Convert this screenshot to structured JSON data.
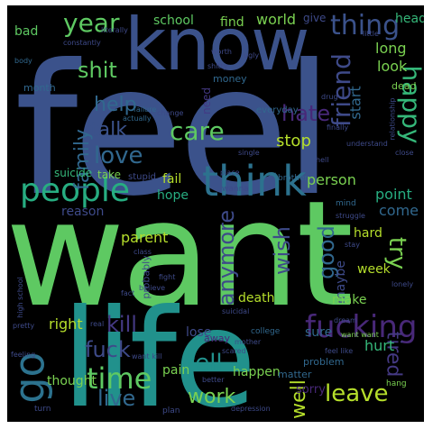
{
  "word_cloud": {
    "words": [
      {
        "text": "feel",
        "color": "#3b528b"
      },
      {
        "text": "want",
        "color": "#5ec962"
      },
      {
        "text": "life",
        "color": "#21918c"
      },
      {
        "text": "know",
        "color": "#3b528b"
      },
      {
        "text": "think",
        "color": "#2c728e"
      },
      {
        "text": "people",
        "color": "#27ad81"
      },
      {
        "text": "fucking",
        "color": "#482878"
      },
      {
        "text": "go",
        "color": "#2c728e"
      },
      {
        "text": "time",
        "color": "#5ec962"
      },
      {
        "text": "thing",
        "color": "#3b528b"
      },
      {
        "text": "year",
        "color": "#5ec962"
      },
      {
        "text": "friend",
        "color": "#3e4a89"
      },
      {
        "text": "happy",
        "color": "#35b779"
      },
      {
        "text": "shit",
        "color": "#5ec962"
      },
      {
        "text": "care",
        "color": "#5ec962"
      },
      {
        "text": "hate",
        "color": "#482878"
      },
      {
        "text": "love",
        "color": "#31688e"
      },
      {
        "text": "help",
        "color": "#31688e"
      },
      {
        "text": "talk",
        "color": "#3b528b"
      },
      {
        "text": "family",
        "color": "#31688e"
      },
      {
        "text": "good",
        "color": "#31688e"
      },
      {
        "text": "wish",
        "color": "#3e4a89"
      },
      {
        "text": "anymore",
        "color": "#3e4a89"
      },
      {
        "text": "try",
        "color": "#7ad151"
      },
      {
        "text": "tired",
        "color": "#443983"
      },
      {
        "text": "leave",
        "color": "#b5de2b"
      },
      {
        "text": "kill",
        "color": "#443983"
      },
      {
        "text": "fuck",
        "color": "#3e4a89"
      },
      {
        "text": "live",
        "color": "#31688e"
      },
      {
        "text": "tell",
        "color": "#21918c"
      },
      {
        "text": "work",
        "color": "#7ad151"
      },
      {
        "text": "well",
        "color": "#b5de2b"
      },
      {
        "text": "stop",
        "color": "#b5de2b"
      },
      {
        "text": "school",
        "color": "#5ec962"
      },
      {
        "text": "find",
        "color": "#7ad151"
      },
      {
        "text": "world",
        "color": "#7ad151"
      },
      {
        "text": "give",
        "color": "#3e4a89"
      },
      {
        "text": "head",
        "color": "#35b779"
      },
      {
        "text": "long",
        "color": "#7ad151"
      },
      {
        "text": "look",
        "color": "#7ad151"
      },
      {
        "text": "start",
        "color": "#31688e"
      },
      {
        "text": "point",
        "color": "#27ad81"
      },
      {
        "text": "come",
        "color": "#31688e"
      },
      {
        "text": "person",
        "color": "#7ad151"
      },
      {
        "text": "parent",
        "color": "#b5de2b"
      },
      {
        "text": "hope",
        "color": "#27ad81"
      },
      {
        "text": "fail",
        "color": "#b5de2b"
      },
      {
        "text": "right",
        "color": "#b5de2b"
      },
      {
        "text": "hard",
        "color": "#b5de2b"
      },
      {
        "text": "maybe",
        "color": "#3e4a89"
      },
      {
        "text": "week",
        "color": "#b5de2b"
      },
      {
        "text": "death",
        "color": "#b5de2b"
      },
      {
        "text": "make",
        "color": "#7ad151"
      },
      {
        "text": "hurt",
        "color": "#35b779"
      },
      {
        "text": "sure",
        "color": "#31688e"
      },
      {
        "text": "pain",
        "color": "#7ad151"
      },
      {
        "text": "lose",
        "color": "#3e4a89"
      },
      {
        "text": "thought",
        "color": "#7ad151"
      },
      {
        "text": "happen",
        "color": "#7ad151"
      },
      {
        "text": "sorry",
        "color": "#482878"
      },
      {
        "text": "money",
        "color": "#31688e"
      },
      {
        "text": "bad",
        "color": "#5ec962"
      },
      {
        "text": "reason",
        "color": "#3e4a89"
      },
      {
        "text": "suicide",
        "color": "#35b779"
      },
      {
        "text": "take",
        "color": "#7ad151"
      },
      {
        "text": "need",
        "color": "#443983"
      },
      {
        "text": "probably",
        "color": "#3e4a89"
      },
      {
        "text": "away",
        "color": "#482878"
      },
      {
        "text": "matter",
        "color": "#31688e"
      },
      {
        "text": "problem",
        "color": "#31688e"
      },
      {
        "text": "month",
        "color": "#31688e"
      },
      {
        "text": "everyday",
        "color": "#31688e"
      },
      {
        "text": "dead",
        "color": "#7ad151"
      },
      {
        "text": "wanna",
        "color": "#3e4a89"
      },
      {
        "text": "brother",
        "color": "#31688e"
      },
      {
        "text": "mind",
        "color": "#31688e"
      },
      {
        "text": "stupid",
        "color": "#3e4a89"
      },
      {
        "text": "college",
        "color": "#31688e"
      },
      {
        "text": "dream",
        "color": "#3e4a89"
      },
      {
        "text": "high school",
        "color": "#3e4a89"
      },
      {
        "text": "depression",
        "color": "#3e4a89"
      },
      {
        "text": "plan",
        "color": "#3e4a89"
      },
      {
        "text": "hang",
        "color": "#7ad151"
      },
      {
        "text": "turn",
        "color": "#3e4a89"
      },
      {
        "text": "feeling",
        "color": "#3e4a89"
      },
      {
        "text": "pretty",
        "color": "#3e4a89"
      },
      {
        "text": "finally",
        "color": "#3e4a89"
      },
      {
        "text": "single",
        "color": "#3e4a89"
      },
      {
        "text": "real",
        "color": "#3e4a89"
      },
      {
        "text": "close",
        "color": "#3e4a89"
      },
      {
        "text": "fight",
        "color": "#3e4a89"
      },
      {
        "text": "class",
        "color": "#3e4a89"
      },
      {
        "text": "stay",
        "color": "#3e4a89"
      },
      {
        "text": "worth",
        "color": "#3e4a89"
      },
      {
        "text": "actually",
        "color": "#31688e"
      },
      {
        "text": "failure",
        "color": "#31688e"
      },
      {
        "text": "body",
        "color": "#31688e"
      },
      {
        "text": "little",
        "color": "#3e4a89"
      },
      {
        "text": "better",
        "color": "#3e4a89"
      },
      {
        "text": "hell",
        "color": "#3e4a89"
      },
      {
        "text": "mother",
        "color": "#3e4a89"
      },
      {
        "text": "scared",
        "color": "#3e4a89"
      },
      {
        "text": "ugly",
        "color": "#3e4a89"
      },
      {
        "text": "understand",
        "color": "#3e4a89"
      },
      {
        "text": "want kill",
        "color": "#3e4a89"
      },
      {
        "text": "want want",
        "color": "#7ad151"
      },
      {
        "text": "struggle",
        "color": "#3e4a89"
      },
      {
        "text": "fact",
        "color": "#3e4a89"
      },
      {
        "text": "place",
        "color": "#3e4a89"
      },
      {
        "text": "believe",
        "color": "#3e4a89"
      },
      {
        "text": "relationship",
        "color": "#3e4a89"
      },
      {
        "text": "change",
        "color": "#3e4a89"
      },
      {
        "text": "literally",
        "color": "#3e4a89"
      },
      {
        "text": "constantly",
        "color": "#3e4a89"
      },
      {
        "text": "shitty",
        "color": "#3e4a89"
      },
      {
        "text": "drug",
        "color": "#3e4a89"
      },
      {
        "text": "lonely",
        "color": "#3e4a89"
      },
      {
        "text": "suicidal",
        "color": "#3e4a89"
      },
      {
        "text": "feel like",
        "color": "#3e4a89"
      }
    ]
  }
}
